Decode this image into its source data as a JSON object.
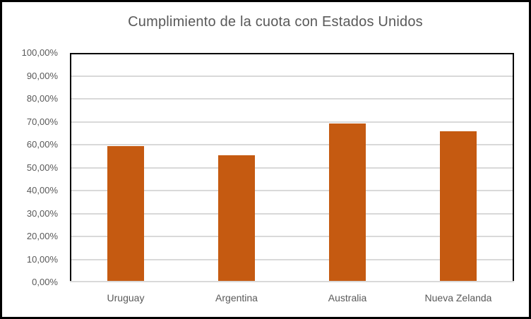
{
  "chart_data": {
    "type": "bar",
    "title": "Cumplimiento de la cuota con Estados Unidos",
    "categories": [
      "Uruguay",
      "Argentina",
      "Australia",
      "Nueva Zelanda"
    ],
    "values": [
      59,
      55,
      69,
      65.5
    ],
    "unit": "%",
    "xlabel": "",
    "ylabel": "",
    "ylim": [
      0,
      100
    ],
    "ytick_step": 10,
    "ytick_labels": [
      "0,00%",
      "10,00%",
      "20,00%",
      "30,00%",
      "40,00%",
      "50,00%",
      "60,00%",
      "70,00%",
      "80,00%",
      "90,00%",
      "100,00%"
    ],
    "grid": true,
    "legend": false,
    "colors": {
      "bar": "#C55A11",
      "title_text": "#595959",
      "axis_text": "#595959",
      "gridline": "#D9D9D9",
      "axis_line": "#D9D9D9",
      "plot_border": "#000000",
      "frame_border": "#000000",
      "background": "#FFFFFF"
    }
  }
}
